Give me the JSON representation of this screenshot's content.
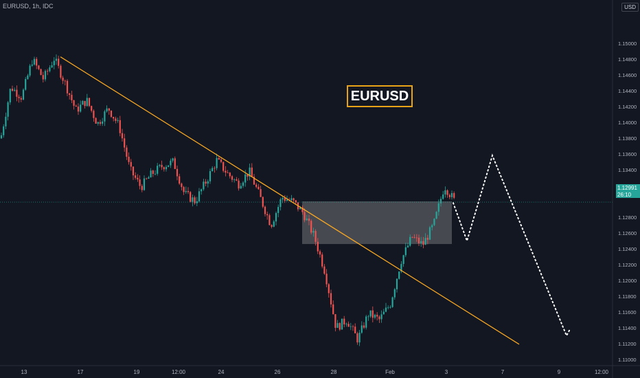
{
  "header": {
    "symbol": "EURUSD, 1h, IDC",
    "currency": "USD"
  },
  "annotation": {
    "title": "EURUSD"
  },
  "last_price": {
    "value": "1.12991",
    "countdown": "26:10"
  },
  "colors": {
    "background": "#131722",
    "up": "#26a69a",
    "down": "#ef5350",
    "trendline": "#f5a623",
    "zone": "#6b6b70",
    "price_line": "#26a69a",
    "title_border": "#e8a317"
  },
  "chart_data": {
    "type": "candlestick",
    "title": "EURUSD",
    "ylim": [
      1.1092,
      1.1555
    ],
    "y_ticks": [
      "1.15000",
      "1.14800",
      "1.14600",
      "1.14400",
      "1.14200",
      "1.14000",
      "1.13800",
      "1.13600",
      "1.13400",
      "1.13200",
      "1.12800",
      "1.12600",
      "1.12400",
      "1.12200",
      "1.12000",
      "1.11800",
      "1.11600",
      "1.11400",
      "1.11200",
      "1.11000"
    ],
    "x_ticks": [
      "13",
      "17",
      "19",
      "12:00",
      "24",
      "26",
      "28",
      "Feb",
      "3",
      "7",
      "9",
      "12:00"
    ],
    "grid": false,
    "price_path": [
      [
        "13",
        1.1375
      ],
      [
        "13",
        1.1445
      ],
      [
        "13",
        1.1432
      ],
      [
        "13",
        1.148
      ],
      [
        "13",
        1.1455
      ],
      [
        "17",
        1.1481
      ],
      [
        "17",
        1.145
      ],
      [
        "17",
        1.1415
      ],
      [
        "17",
        1.1428
      ],
      [
        "17",
        1.1398
      ],
      [
        "19",
        1.1418
      ],
      [
        "19",
        1.1395
      ],
      [
        "19",
        1.134
      ],
      [
        "19",
        1.1318
      ],
      [
        "19",
        1.1335
      ],
      [
        "12:00",
        1.1345
      ],
      [
        "12:00",
        1.135
      ],
      [
        "12:00",
        1.131
      ],
      [
        "12:00",
        1.13
      ],
      [
        "12:00",
        1.1325
      ],
      [
        "24",
        1.1352
      ],
      [
        "24",
        1.1335
      ],
      [
        "24",
        1.1322
      ],
      [
        "24",
        1.1338
      ],
      [
        "24",
        1.1305
      ],
      [
        "26",
        1.127
      ],
      [
        "26",
        1.1305
      ],
      [
        "26",
        1.13
      ],
      [
        "26",
        1.1285
      ],
      [
        "26",
        1.1255
      ],
      [
        "28",
        1.121
      ],
      [
        "28",
        1.114
      ],
      [
        "28",
        1.115
      ],
      [
        "28",
        1.1125
      ],
      [
        "28",
        1.1158
      ],
      [
        "Feb",
        1.115
      ],
      [
        "Feb",
        1.117
      ],
      [
        "Feb",
        1.1225
      ],
      [
        "Feb",
        1.1255
      ],
      [
        "Feb",
        1.1245
      ],
      [
        "3",
        1.127
      ],
      [
        "3",
        1.132
      ],
      [
        "3",
        1.1299
      ]
    ],
    "trendline": {
      "start": [
        "17",
        1.1483
      ],
      "end": [
        "9",
        1.1119
      ]
    },
    "zone": {
      "from": "26",
      "to": "3",
      "top": 1.13,
      "bottom": 1.1246
    },
    "last_price": 1.12991,
    "projection": [
      [
        "3",
        1.1298
      ],
      [
        "7",
        1.125
      ],
      [
        "7",
        1.1358
      ],
      [
        "9",
        1.113
      ],
      [
        "9",
        1.1138
      ]
    ]
  }
}
